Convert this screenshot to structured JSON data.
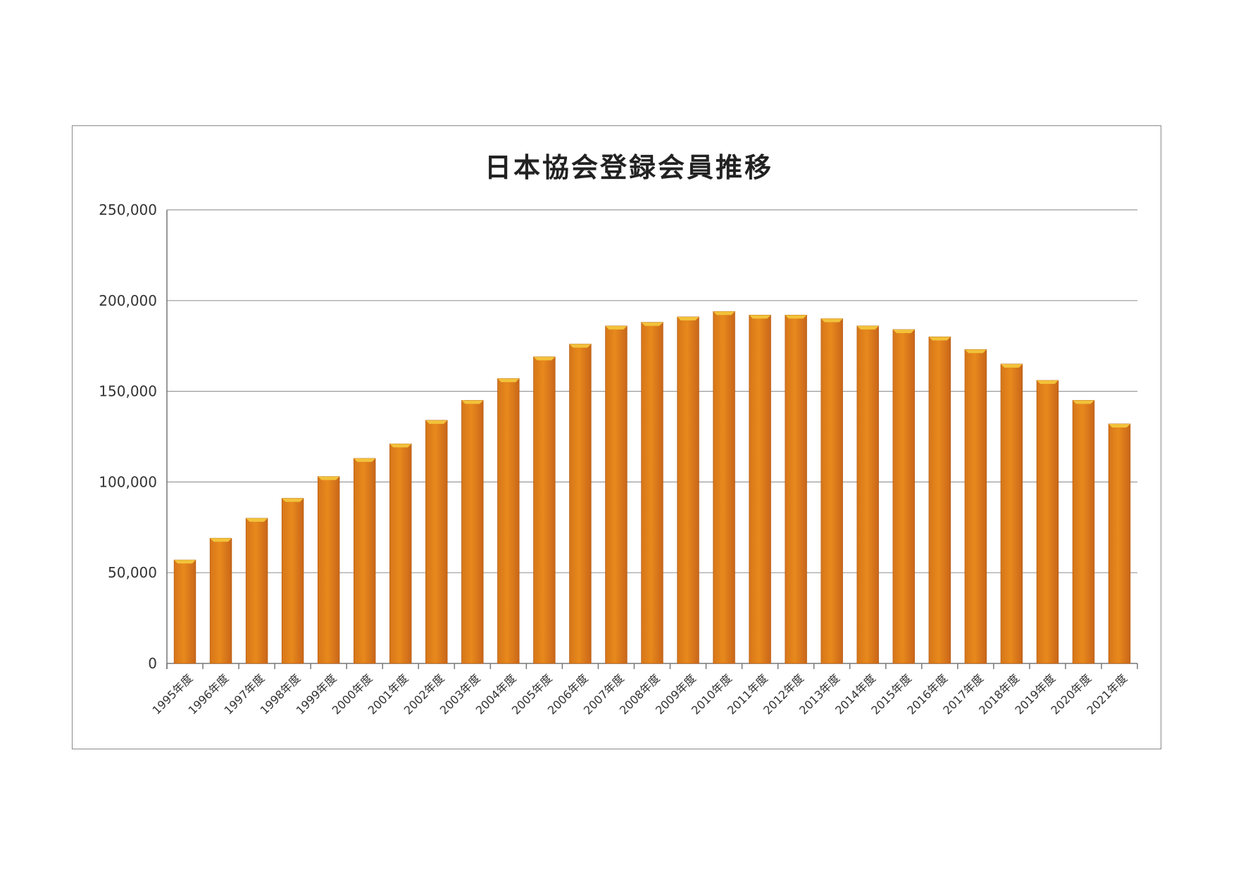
{
  "chart_data": {
    "type": "bar",
    "title": "日本協会登録会員推移",
    "xlabel": "",
    "ylabel": "",
    "ylim": [
      0,
      250000
    ],
    "yticks": [
      "0",
      "50,000",
      "100,000",
      "150,000",
      "200,000",
      "250,000"
    ],
    "ytick_values": [
      0,
      50000,
      100000,
      150000,
      200000,
      250000
    ],
    "grid": true,
    "bar_color": "#e8891c",
    "bar_top_color": "#f2c23a",
    "categories": [
      "1995年度",
      "1996年度",
      "1997年度",
      "1998年度",
      "1999年度",
      "2000年度",
      "2001年度",
      "2002年度",
      "2003年度",
      "2004年度",
      "2005年度",
      "2006年度",
      "2007年度",
      "2008年度",
      "2009年度",
      "2010年度",
      "2011年度",
      "2012年度",
      "2013年度",
      "2014年度",
      "2015年度",
      "2016年度",
      "2017年度",
      "2018年度",
      "2019年度",
      "2020年度",
      "2021年度"
    ],
    "values": [
      57000,
      69000,
      80000,
      91000,
      103000,
      113000,
      121000,
      134000,
      145000,
      157000,
      169000,
      176000,
      186000,
      188000,
      191000,
      194000,
      192000,
      192000,
      190000,
      186000,
      184000,
      180000,
      173000,
      165000,
      156000,
      145000,
      132000
    ]
  }
}
